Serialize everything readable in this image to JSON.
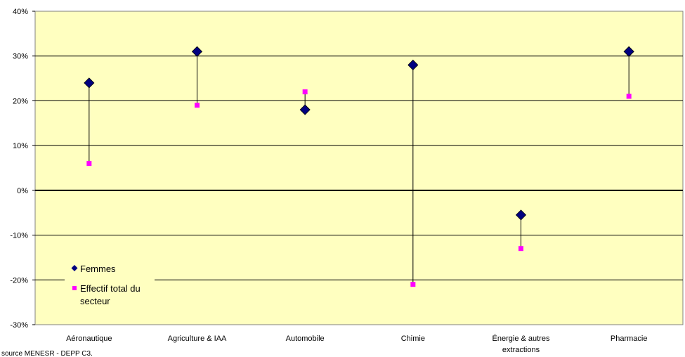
{
  "chart_data": {
    "type": "scatter",
    "title": "",
    "xlabel": "",
    "ylabel": "",
    "ylim": [
      -30,
      40
    ],
    "ytick_step": 10,
    "ytick_suffix": "%",
    "grid": true,
    "categories": [
      [
        "Aéronautique"
      ],
      [
        "Agriculture & IAA"
      ],
      [
        "Automobile"
      ],
      [
        "Chimie"
      ],
      [
        "Énergie & autres",
        "extractions"
      ],
      [
        "Pharmacie"
      ]
    ],
    "series": [
      {
        "name": "Femmes",
        "marker": "diamond",
        "color": "#000080",
        "values": [
          24,
          31,
          18,
          28,
          -5.5,
          31
        ]
      },
      {
        "name": "Effectif total du secteur",
        "marker": "square",
        "color": "#ff00ff",
        "values": [
          6,
          19,
          22,
          -21,
          -13,
          21
        ]
      }
    ],
    "legend": {
      "placement": "bottom-left",
      "entries": [
        {
          "lines": [
            "Femmes"
          ],
          "color": "#000080",
          "marker": "diamond"
        },
        {
          "lines": [
            "Effectif total du",
            "secteur"
          ],
          "color": "#ff00ff",
          "marker": "square"
        }
      ]
    },
    "plot_background": "#ffffc0",
    "source_note": "source MENESR - DEPP C3."
  }
}
